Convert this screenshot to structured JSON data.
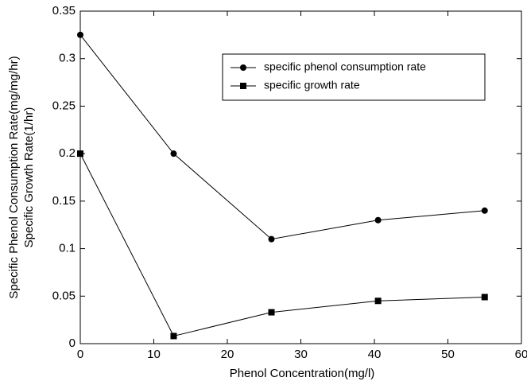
{
  "chart_data": {
    "type": "line",
    "xlabel": "Phenol Concentration(mg/l)",
    "ylabel": [
      "Specific Phenol Consumption Rate(mg/mg/hr)",
      "Specific Growth Rate(1/hr)"
    ],
    "x": [
      0,
      12.7,
      26,
      40.5,
      55
    ],
    "series": [
      {
        "name": "specific phenol consumption rate",
        "color": "#000000",
        "marker": "circle",
        "values": [
          0.325,
          0.2,
          0.11,
          0.13,
          0.14
        ]
      },
      {
        "name": "specific growth rate",
        "color": "#000000",
        "marker": "square",
        "values": [
          0.2,
          0.008,
          0.033,
          0.045,
          0.049
        ]
      }
    ],
    "xlim": [
      0,
      60
    ],
    "xticks": [
      0,
      10,
      20,
      30,
      40,
      50,
      60
    ],
    "ylim": [
      0,
      0.35
    ],
    "yticks": [
      0,
      0.05,
      0.1,
      0.15,
      0.2,
      0.25,
      0.3,
      0.35
    ],
    "grid": false,
    "legend": "upper right"
  }
}
